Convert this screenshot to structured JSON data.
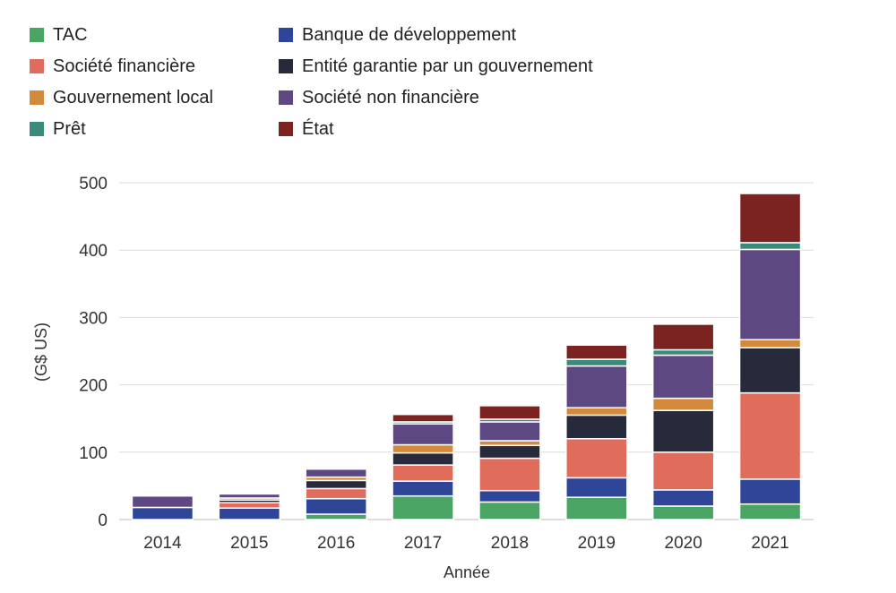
{
  "chart_data": {
    "type": "bar",
    "stacked": true,
    "categories": [
      "2014",
      "2015",
      "2016",
      "2017",
      "2018",
      "2019",
      "2020",
      "2021"
    ],
    "xlabel": "Année",
    "ylabel": "(G$ US)",
    "ylim": [
      0,
      500
    ],
    "yticks": [
      0,
      100,
      200,
      300,
      400,
      500
    ],
    "grid": true,
    "legend_position": "top-left",
    "series": [
      {
        "name": "TAC",
        "color": "#4aa564",
        "values": [
          0,
          0,
          8,
          35,
          26,
          33,
          20,
          23
        ]
      },
      {
        "name": "Banque de développement",
        "color": "#2f4698",
        "values": [
          18,
          17,
          23,
          22,
          17,
          29,
          24,
          37
        ]
      },
      {
        "name": "Société financière",
        "color": "#e06c5b",
        "values": [
          0,
          8,
          15,
          24,
          48,
          58,
          56,
          128
        ]
      },
      {
        "name": "Entité garantie par un gouvernement",
        "color": "#262a3a",
        "values": [
          0,
          4,
          12,
          18,
          19,
          35,
          62,
          67
        ]
      },
      {
        "name": "Gouvernement local",
        "color": "#d48a3c",
        "values": [
          0,
          3,
          5,
          12,
          7,
          11,
          18,
          12
        ]
      },
      {
        "name": "Société non financière",
        "color": "#5e4882",
        "values": [
          17,
          6,
          12,
          31,
          28,
          62,
          64,
          134
        ]
      },
      {
        "name": "Prêt",
        "color": "#3a8a7d",
        "values": [
          0,
          0,
          2,
          3,
          4,
          10,
          8,
          10
        ]
      },
      {
        "name": "État",
        "color": "#7a2320",
        "values": [
          0,
          0,
          0,
          11,
          20,
          21,
          38,
          73
        ]
      }
    ]
  }
}
